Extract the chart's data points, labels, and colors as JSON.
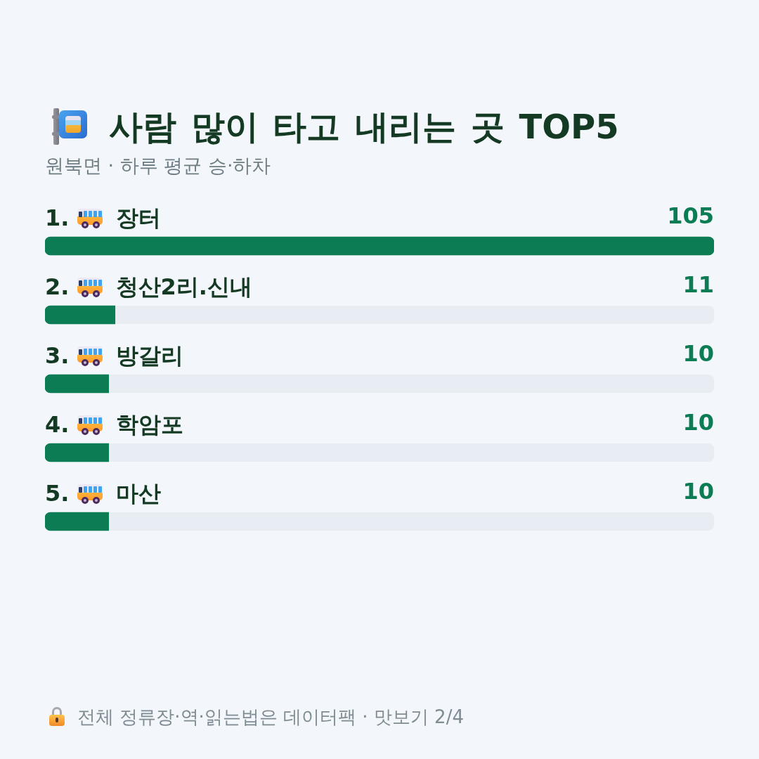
{
  "chart_data": {
    "type": "bar",
    "orientation": "horizontal",
    "title": "사람 많이 타고 내리는 곳 TOP5",
    "subtitle": "원북면 · 하루 평균 승·하차",
    "categories": [
      "1. 장터",
      "2. 청산2리.신내",
      "3. 방갈리",
      "4. 학암포",
      "5. 마산"
    ],
    "values": [
      105,
      11,
      10,
      10,
      10
    ],
    "color": "#0b7c53",
    "xlim": [
      0,
      105
    ],
    "data_labels": true,
    "annotations": [
      "전체 정류장·역·읽는법은 데이터팩 · 맛보기 2/4"
    ]
  }
}
